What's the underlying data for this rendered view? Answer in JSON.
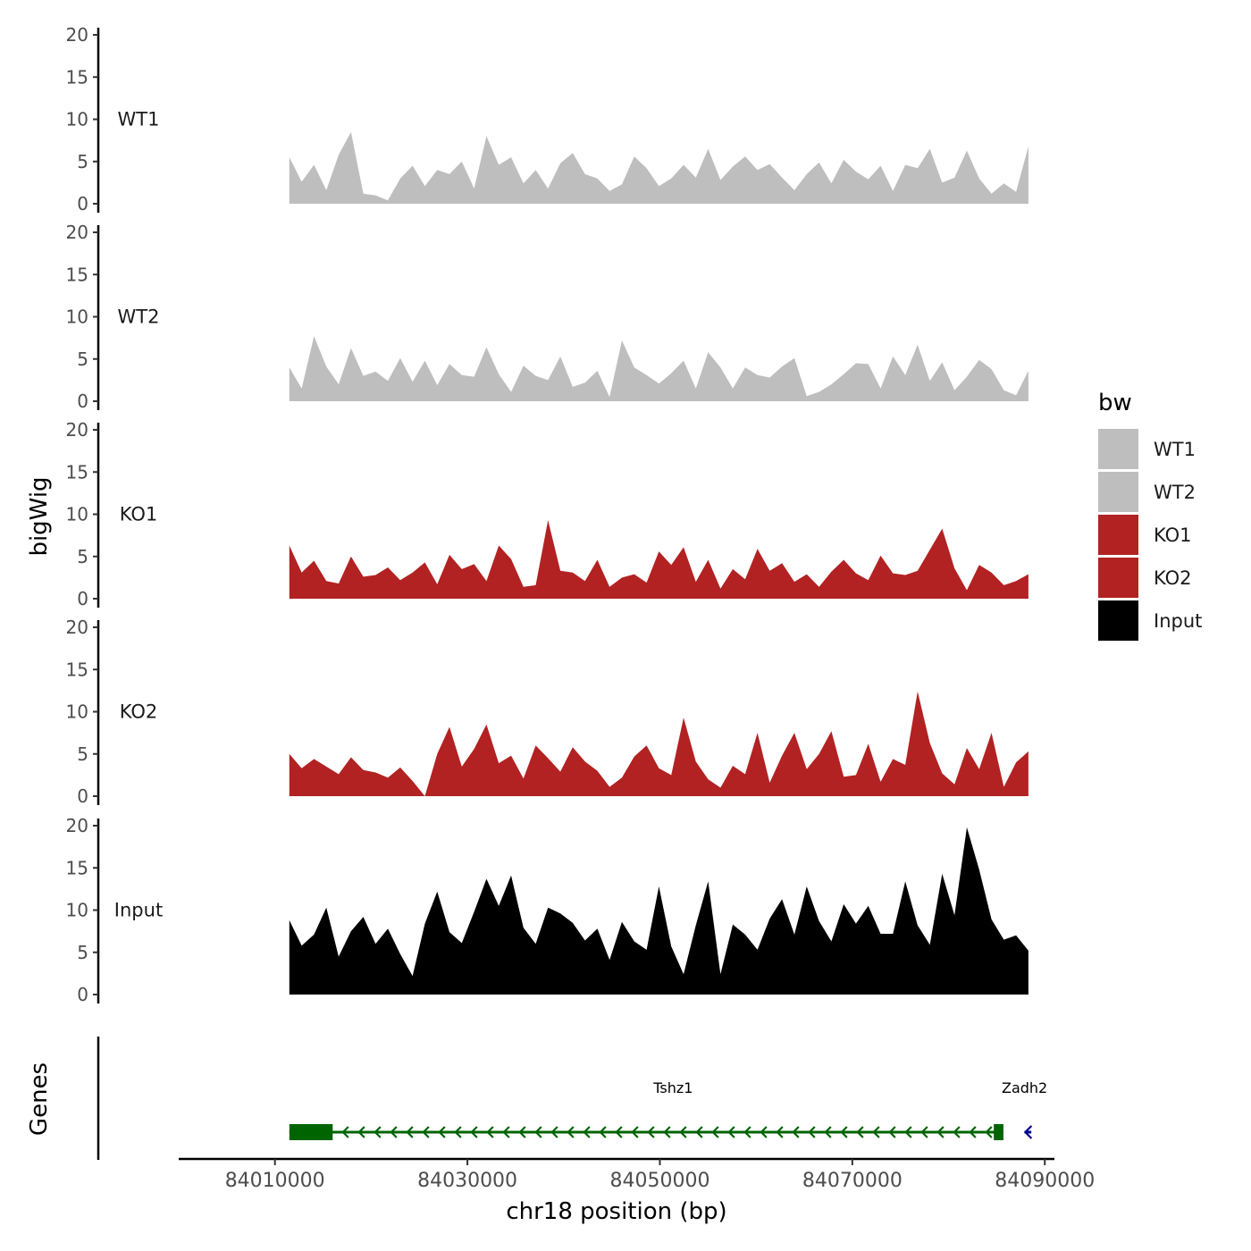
{
  "chart_data": {
    "type": "area",
    "title": "",
    "xlabel": "chr18 position (bp)",
    "ylabel": "bigWig",
    "genes_label": "Genes",
    "xlim": [
      84000000,
      84091000
    ],
    "data_range": [
      84011500,
      84088500
    ],
    "x_ticks": [
      84010000,
      84030000,
      84050000,
      84070000,
      84090000
    ],
    "x_tick_labels": [
      "84010000",
      "84030000",
      "84050000",
      "84070000",
      "84090000"
    ],
    "ylim": [
      0,
      20
    ],
    "y_ticks": [
      0,
      5,
      10,
      15,
      20
    ],
    "y_tick_labels": [
      "0",
      "5",
      "10",
      "15",
      "20"
    ],
    "series": [
      {
        "name": "WT1",
        "color": "#bebebe",
        "x": [
          84011500,
          84012780,
          84014060,
          84015340,
          84016620,
          84017900,
          84019180,
          84020460,
          84021740,
          84023020,
          84024300,
          84025580,
          84026860,
          84028140,
          84029420,
          84030700,
          84031980,
          84033260,
          84034540,
          84035820,
          84037100,
          84038380,
          84039660,
          84040940,
          84042220,
          84043500,
          84044780,
          84046060,
          84047340,
          84048620,
          84049900,
          84051180,
          84052460,
          84053740,
          84055020,
          84056300,
          84057580,
          84058860,
          84060140,
          84061420,
          84062700,
          84063980,
          84065260,
          84066540,
          84067820,
          84069100,
          84070380,
          84071660,
          84072940,
          84074220,
          84075500,
          84076780,
          84078060,
          84079340,
          84080620,
          84081900,
          84083180,
          84084460,
          84085740,
          84087020,
          84088300
        ],
        "values": [
          5.5,
          2.6,
          4.6,
          1.6,
          5.8,
          8.5,
          1.2,
          1.0,
          0.4,
          3.0,
          4.5,
          2.1,
          4.0,
          3.5,
          5.0,
          1.8,
          8.0,
          4.6,
          5.5,
          2.4,
          4.0,
          1.8,
          4.8,
          6.0,
          3.5,
          3.0,
          1.5,
          2.3,
          5.6,
          4.2,
          2.1,
          3.0,
          4.6,
          3.1,
          6.5,
          2.8,
          4.4,
          5.6,
          4.0,
          4.7,
          3.1,
          1.6,
          3.5,
          4.9,
          2.4,
          5.2,
          3.8,
          2.9,
          4.5,
          1.5,
          4.6,
          4.2,
          6.5,
          2.5,
          3.1,
          6.3,
          3.0,
          1.2,
          2.4,
          1.4,
          6.8
        ]
      },
      {
        "name": "WT2",
        "color": "#bebebe",
        "x": [
          84011500,
          84012780,
          84014060,
          84015340,
          84016620,
          84017900,
          84019180,
          84020460,
          84021740,
          84023020,
          84024300,
          84025580,
          84026860,
          84028140,
          84029420,
          84030700,
          84031980,
          84033260,
          84034540,
          84035820,
          84037100,
          84038380,
          84039660,
          84040940,
          84042220,
          84043500,
          84044780,
          84046060,
          84047340,
          84048620,
          84049900,
          84051180,
          84052460,
          84053740,
          84055020,
          84056300,
          84057580,
          84058860,
          84060140,
          84061420,
          84062700,
          84063980,
          84065260,
          84066540,
          84067820,
          84069100,
          84070380,
          84071660,
          84072940,
          84074220,
          84075500,
          84076780,
          84078060,
          84079340,
          84080620,
          84081900,
          84083180,
          84084460,
          84085740,
          84087020,
          84088300
        ],
        "values": [
          4.0,
          1.5,
          7.7,
          4.1,
          2.0,
          6.3,
          3.0,
          3.5,
          2.4,
          5.1,
          2.3,
          4.8,
          1.9,
          4.4,
          3.1,
          2.9,
          6.4,
          3.2,
          1.1,
          4.2,
          3.0,
          2.5,
          5.3,
          1.7,
          2.2,
          3.6,
          0.5,
          7.2,
          4.0,
          3.1,
          2.1,
          3.3,
          4.8,
          1.5,
          5.8,
          4.0,
          1.5,
          4.0,
          3.1,
          2.8,
          4.1,
          5.1,
          0.6,
          1.1,
          2.0,
          3.2,
          4.5,
          4.4,
          1.5,
          5.3,
          3.1,
          6.7,
          2.4,
          4.6,
          1.3,
          2.9,
          4.9,
          3.8,
          1.3,
          0.7,
          3.6
        ]
      },
      {
        "name": "KO1",
        "color": "#b22222",
        "x": [
          84011500,
          84012780,
          84014060,
          84015340,
          84016620,
          84017900,
          84019180,
          84020460,
          84021740,
          84023020,
          84024300,
          84025580,
          84026860,
          84028140,
          84029420,
          84030700,
          84031980,
          84033260,
          84034540,
          84035820,
          84037100,
          84038380,
          84039660,
          84040940,
          84042220,
          84043500,
          84044780,
          84046060,
          84047340,
          84048620,
          84049900,
          84051180,
          84052460,
          84053740,
          84055020,
          84056300,
          84057580,
          84058860,
          84060140,
          84061420,
          84062700,
          84063980,
          84065260,
          84066540,
          84067820,
          84069100,
          84070380,
          84071660,
          84072940,
          84074220,
          84075500,
          84076780,
          84078060,
          84079340,
          84080620,
          84081900,
          84083180,
          84084460,
          84085740,
          84087020,
          84088300
        ],
        "values": [
          6.3,
          3.1,
          4.5,
          2.1,
          1.8,
          5.0,
          2.6,
          2.8,
          3.7,
          2.2,
          3.1,
          4.3,
          1.7,
          5.2,
          3.5,
          4.1,
          2.1,
          6.3,
          4.7,
          1.4,
          1.6,
          9.3,
          3.3,
          3.1,
          2.1,
          4.6,
          1.4,
          2.5,
          2.9,
          1.9,
          5.6,
          4.0,
          6.1,
          2.0,
          4.6,
          1.2,
          3.5,
          2.3,
          5.9,
          3.3,
          4.2,
          2.0,
          2.9,
          1.4,
          3.2,
          4.6,
          3.0,
          2.2,
          5.1,
          3.0,
          2.8,
          3.3,
          5.8,
          8.3,
          3.6,
          1.0,
          4.0,
          3.1,
          1.6,
          2.1,
          2.9
        ]
      },
      {
        "name": "KO2",
        "color": "#b22222",
        "x": [
          84011500,
          84012780,
          84014060,
          84015340,
          84016620,
          84017900,
          84019180,
          84020460,
          84021740,
          84023020,
          84024300,
          84025580,
          84026860,
          84028140,
          84029420,
          84030700,
          84031980,
          84033260,
          84034540,
          84035820,
          84037100,
          84038380,
          84039660,
          84040940,
          84042220,
          84043500,
          84044780,
          84046060,
          84047340,
          84048620,
          84049900,
          84051180,
          84052460,
          84053740,
          84055020,
          84056300,
          84057580,
          84058860,
          84060140,
          84061420,
          84062700,
          84063980,
          84065260,
          84066540,
          84067820,
          84069100,
          84070380,
          84071660,
          84072940,
          84074220,
          84075500,
          84076780,
          84078060,
          84079340,
          84080620,
          84081900,
          84083180,
          84084460,
          84085740,
          84087020,
          84088300
        ],
        "values": [
          5.0,
          3.3,
          4.4,
          3.5,
          2.6,
          4.6,
          3.1,
          2.8,
          2.2,
          3.4,
          1.8,
          0.0,
          5.0,
          8.2,
          3.5,
          5.6,
          8.5,
          3.9,
          4.8,
          2.1,
          6.0,
          4.5,
          2.9,
          5.8,
          4.1,
          3.0,
          1.1,
          2.2,
          4.7,
          6.0,
          3.3,
          2.5,
          9.3,
          4.1,
          2.0,
          1.0,
          3.6,
          2.6,
          7.5,
          1.6,
          4.8,
          7.5,
          3.2,
          5.0,
          7.7,
          2.3,
          2.5,
          6.2,
          1.7,
          4.4,
          3.7,
          12.4,
          6.3,
          2.7,
          1.4,
          5.7,
          3.2,
          7.5,
          1.1,
          4.0,
          5.3
        ]
      },
      {
        "name": "Input",
        "color": "#000000",
        "x": [
          84011500,
          84012780,
          84014060,
          84015340,
          84016620,
          84017900,
          84019180,
          84020460,
          84021740,
          84023020,
          84024300,
          84025580,
          84026860,
          84028140,
          84029420,
          84030700,
          84031980,
          84033260,
          84034540,
          84035820,
          84037100,
          84038380,
          84039660,
          84040940,
          84042220,
          84043500,
          84044780,
          84046060,
          84047340,
          84048620,
          84049900,
          84051180,
          84052460,
          84053740,
          84055020,
          84056300,
          84057580,
          84058860,
          84060140,
          84061420,
          84062700,
          84063980,
          84065260,
          84066540,
          84067820,
          84069100,
          84070380,
          84071660,
          84072940,
          84074220,
          84075500,
          84076780,
          84078060,
          84079340,
          84080620,
          84081900,
          84083180,
          84084460,
          84085740,
          84087020,
          84088300
        ],
        "values": [
          8.8,
          5.8,
          7.1,
          10.3,
          4.5,
          7.5,
          9.2,
          6.0,
          7.8,
          4.8,
          2.2,
          8.4,
          12.2,
          7.4,
          6.1,
          9.8,
          13.7,
          10.5,
          14.1,
          7.9,
          6.0,
          10.3,
          9.6,
          8.5,
          6.4,
          7.8,
          4.1,
          8.6,
          6.3,
          5.3,
          12.8,
          5.7,
          2.4,
          8.2,
          13.4,
          2.4,
          8.3,
          7.1,
          5.3,
          9.0,
          11.3,
          7.1,
          12.8,
          8.7,
          6.3,
          10.7,
          8.4,
          10.5,
          7.2,
          7.2,
          13.4,
          8.2,
          5.9,
          14.3,
          9.4,
          19.8,
          14.8,
          8.9,
          6.5,
          7.0,
          5.2
        ]
      }
    ],
    "legend": {
      "title": "bw",
      "position": "right",
      "entries": [
        {
          "label": "WT1",
          "color": "#bebebe"
        },
        {
          "label": "WT2",
          "color": "#bebebe"
        },
        {
          "label": "KO1",
          "color": "#b22222"
        },
        {
          "label": "KO2",
          "color": "#b22222"
        },
        {
          "label": "Input",
          "color": "#000000"
        }
      ]
    },
    "genes": [
      {
        "name": "Tshz1",
        "start": 84011500,
        "end": 84085700,
        "strand": "-",
        "color": "#006400",
        "exons": [
          [
            84011500,
            84016000
          ],
          [
            84084700,
            84085700
          ]
        ]
      },
      {
        "name": "Zadh2",
        "start": 84087900,
        "end": 84088600,
        "strand": "-",
        "color": "#00008b",
        "exons": []
      }
    ]
  }
}
